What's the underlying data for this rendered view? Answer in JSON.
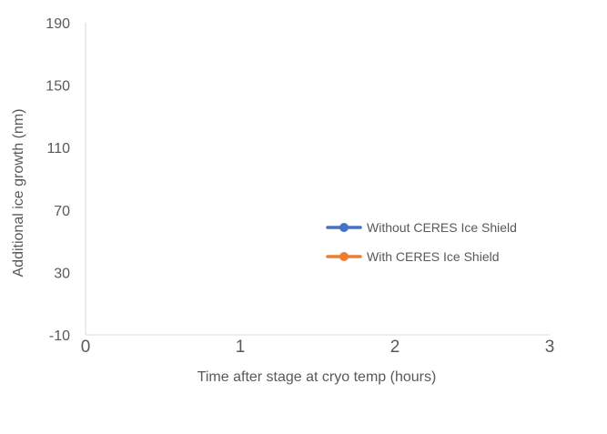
{
  "chart_data": {
    "type": "line",
    "title": "",
    "xlabel": "Time after stage at cryo temp (hours)",
    "ylabel": "Additional ice growth (nm)",
    "xlim": [
      0,
      3
    ],
    "ylim": [
      -10,
      190
    ],
    "x_ticks": [
      0,
      1,
      2,
      3
    ],
    "y_ticks": [
      -10,
      30,
      70,
      110,
      150,
      190
    ],
    "grid": false,
    "legend": {
      "placement": "right",
      "entries": [
        {
          "name": "Without CERES Ice Shield",
          "color": "#4472C4"
        },
        {
          "name": "With CERES Ice Shield",
          "color": "#ED7D31"
        }
      ]
    },
    "series": [
      {
        "name": "Without CERES Ice Shield",
        "color": "#4472C4",
        "x": [],
        "y": []
      },
      {
        "name": "With CERES Ice Shield",
        "color": "#ED7D31",
        "x": [],
        "y": []
      }
    ]
  }
}
